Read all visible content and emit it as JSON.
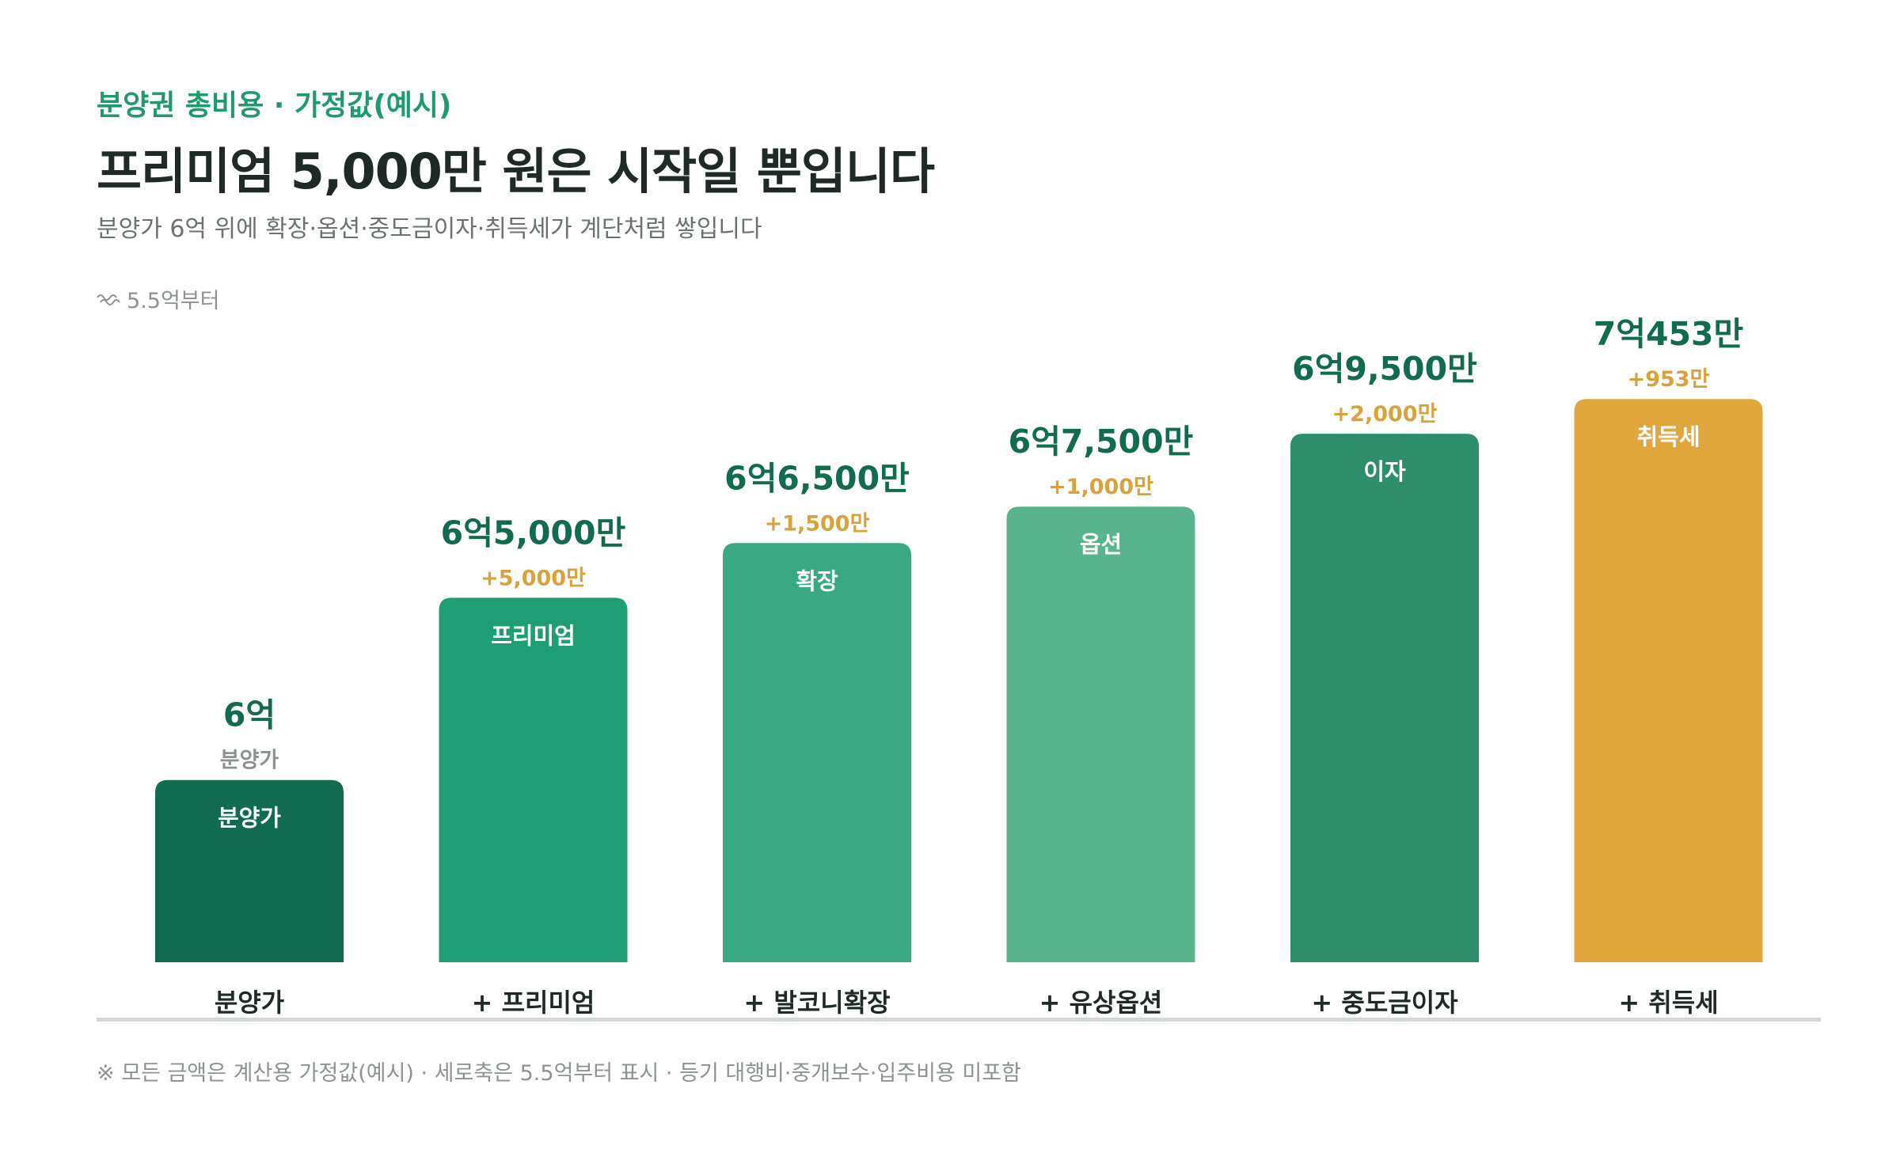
{
  "header": {
    "eyebrow": "분양권 총비용 · 가정값(예시)",
    "title": "프리미엄 5,000만 원은 시작일 뿐입니다",
    "subtitle": "분양가 6억 위에 확장·옵션·중도금이자·취득세가 계단처럼 쌓입니다"
  },
  "axis_note": "5.5억부터",
  "footnote": "※ 모든 금액은 계산용 가정값(예시) · 세로축은 5.5억부터 표시 · 등기 대행비·중개보수·입주비용 미포함",
  "chart_data": {
    "type": "bar",
    "unit": "만 원",
    "ylim": [
      55000,
      71500
    ],
    "categories": [
      "분양가",
      "+ 프리미엄",
      "+ 발코니확장",
      "+ 유상옵션",
      "+ 중도금이자",
      "+ 취득세"
    ],
    "values": [
      60000,
      65000,
      66500,
      67500,
      69500,
      70453
    ],
    "value_labels": [
      "6억",
      "6억5,000만",
      "6억6,500만",
      "6억7,500만",
      "6억9,500만",
      "7억453만"
    ],
    "increment_labels": [
      "분양가",
      "+5,000만",
      "+1,500만",
      "+1,000만",
      "+2,000만",
      "+953만"
    ],
    "bar_labels": [
      "분양가",
      "프리미엄",
      "확장",
      "옵션",
      "이자",
      "취득세"
    ],
    "colors": [
      "#116b51",
      "#1f9e76",
      "#38a982",
      "#57b48e",
      "#2e8e6b",
      "#e0a73d"
    ],
    "value_label_color": "#116b51",
    "increment_color": "#d9a23b",
    "base_increment_color": "#8d9490"
  }
}
